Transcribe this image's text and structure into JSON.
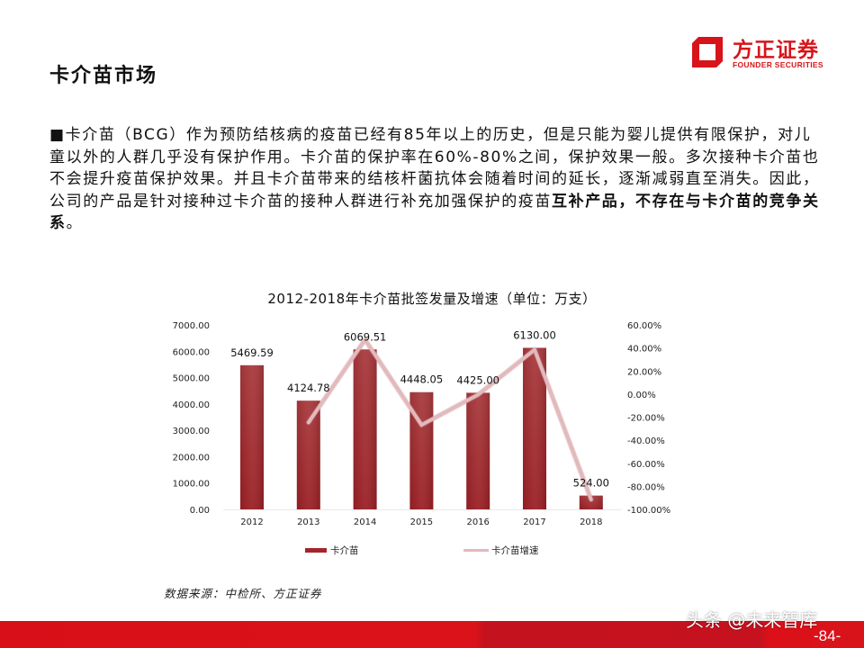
{
  "header": {
    "title": "卡介苗市场",
    "logo": {
      "name_cn": "方正证券",
      "name_en": "FOUNDER SECURITIES",
      "brand_color": "#d7141a"
    }
  },
  "body": {
    "bullet": "■",
    "text_plain": "卡介苗（BCG）作为预防结核病的疫苗已经有85年以上的历史，但是只能为婴儿提供有限保护，对儿童以外的人群几乎没有保护作用。卡介苗的保护率在60%-80%之间，保护效果一般。多次接种卡介苗也不会提升疫苗保护效果。并且卡介苗带来的结核杆菌抗体会随着时间的延长，逐渐减弱直至消失。因此，公司的产品是针对接种过卡介苗的接种人群进行补充加强保护的疫苗",
    "text_bold": "互补产品，不存在与卡介苗的竞争关系",
    "text_end": "。"
  },
  "chart_data": {
    "type": "bar+line",
    "title": "2012-2018年卡介苗批签发量及增速（单位：万支）",
    "categories": [
      "2012",
      "2013",
      "2014",
      "2015",
      "2016",
      "2017",
      "2018"
    ],
    "series": [
      {
        "name": "卡介苗",
        "type": "bar",
        "axis": "left",
        "color": "#a3252a",
        "values": [
          5469.59,
          4124.78,
          6069.51,
          4448.05,
          4425.0,
          6130.0,
          524.0
        ],
        "labels": [
          "5469.59",
          "4124.78",
          "6069.51",
          "4448.05",
          "4425.00",
          "6130.00",
          "524.00"
        ]
      },
      {
        "name": "卡介苗增速",
        "type": "line",
        "axis": "right",
        "color": "#e3b9bc",
        "values": [
          null,
          -24.59,
          47.15,
          -26.71,
          -0.52,
          38.53,
          -91.45
        ]
      }
    ],
    "y_left": {
      "ylim": [
        0,
        7000
      ],
      "ticks": [
        "7000.00",
        "6000.00",
        "5000.00",
        "4000.00",
        "3000.00",
        "2000.00",
        "1000.00",
        "0.00"
      ]
    },
    "y_right": {
      "ylim": [
        -100,
        60
      ],
      "ticks": [
        "60.00%",
        "40.00%",
        "20.00%",
        "0.00%",
        "-20.00%",
        "-40.00%",
        "-60.00%",
        "-80.00%",
        "-100.00%"
      ]
    },
    "xlabel": "",
    "ylabel": "",
    "grid": false,
    "legend_position": "bottom"
  },
  "source": "数据来源：中检所、方正证券",
  "footer": {
    "watermark": "头条 @未来智库",
    "page_number": "-84-"
  }
}
